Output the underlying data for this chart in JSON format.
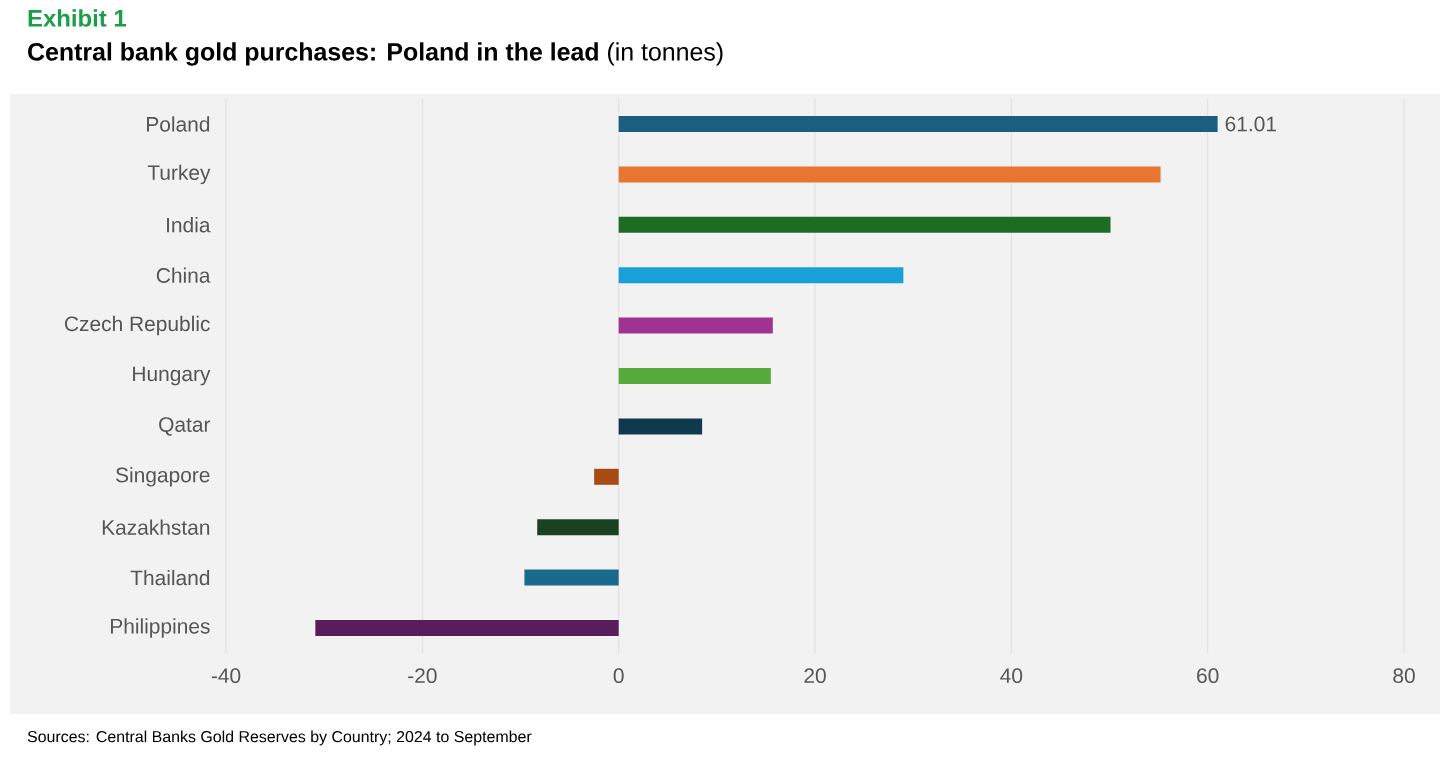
{
  "chart_data": {
    "type": "bar",
    "orientation": "horizontal",
    "title": "**Central bank gold purchases: Poland in the lead** (in tonnes)",
    "annotations": [
      "Exhibit 1",
      "Sources: Central Banks Gold Reserves by Country; 2024 to September"
    ],
    "categories": [
      "Poland",
      "Turkey",
      "India",
      "China",
      "Czech Republic",
      "Hungary",
      "Qatar",
      "Singapore",
      "Kazakhstan",
      "Thailand",
      "Philippines"
    ],
    "values": [
      61.01,
      55.2,
      50.1,
      29.0,
      15.7,
      15.5,
      8.5,
      -2.5,
      -8.3,
      -9.6,
      -30.9
    ],
    "value_labels": [
      "61.01",
      null,
      null,
      null,
      null,
      null,
      null,
      null,
      null,
      null,
      null
    ],
    "colors": [
      "#1b5e80",
      "#e87532",
      "#1e6b23",
      "#1aa0d8",
      "#a03291",
      "#55aa3a",
      "#0f3a4e",
      "#a84a14",
      "#1a4220",
      "#1a6a8c",
      "#5a1d5c"
    ],
    "xlim": [
      -40,
      80
    ],
    "xticks": [
      -40,
      -20,
      0,
      20,
      40,
      60,
      80
    ],
    "grid": "x"
  }
}
